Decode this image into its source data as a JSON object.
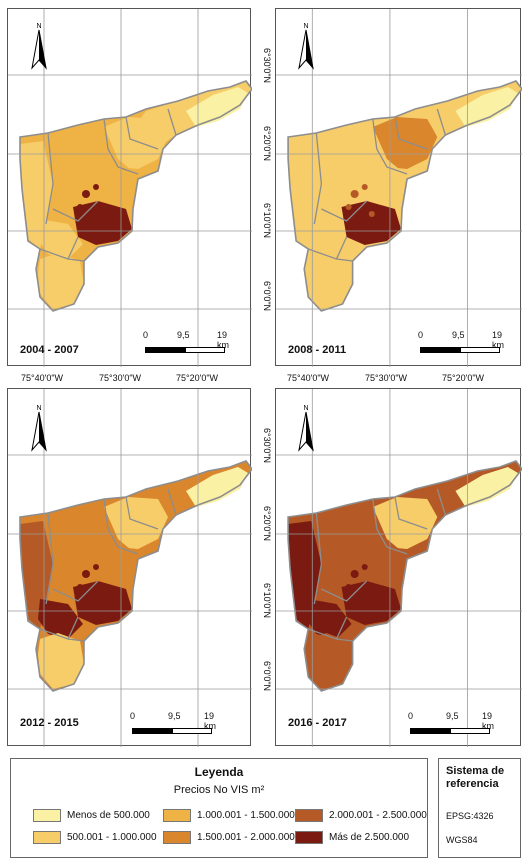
{
  "panels": [
    {
      "period": "2004 - 2007",
      "levels": {
        "north": 1,
        "northeast": 0,
        "east": 1,
        "center": 2,
        "west": 1,
        "southwest": 1,
        "south": 1,
        "core": 5,
        "hotspot": 5
      }
    },
    {
      "period": "2008 - 2011",
      "levels": {
        "north": 1,
        "northeast": 0,
        "east": 3,
        "center": 1,
        "west": 1,
        "southwest": 1,
        "south": 1,
        "core": 5,
        "hotspot": 4
      }
    },
    {
      "period": "2012 - 2015",
      "levels": {
        "north": 3,
        "northeast": 0,
        "east": 1,
        "center": 3,
        "west": 4,
        "southwest": 5,
        "south": 1,
        "core": 5,
        "hotspot": 5
      }
    },
    {
      "period": "2016 - 2017",
      "levels": {
        "north": 4,
        "northeast": 0,
        "east": 1,
        "center": 4,
        "west": 5,
        "southwest": 5,
        "south": 4,
        "core": 5,
        "hotspot": 5
      }
    }
  ],
  "longitude_labels": [
    "75°40'0\"W",
    "75°30'0\"W",
    "75°20'0\"W"
  ],
  "latitude_labels": [
    "6°30'0\"N",
    "6°20'0\"N",
    "6°10'0\"N",
    "6°0'0\"N"
  ],
  "scale": {
    "zero": "0",
    "mid": "9,5",
    "end": "19 km"
  },
  "north_label": "N",
  "legend": {
    "title": "Leyenda",
    "subtitle": "Precios No VIS m²",
    "classes": [
      {
        "label": "Menos de 500.000",
        "color": "#fbf1a4"
      },
      {
        "label": "500.001 - 1.000.000",
        "color": "#f7cd6a"
      },
      {
        "label": "1.000.001 - 1.500.000",
        "color": "#efb245"
      },
      {
        "label": "1.500.001 - 2.000.000",
        "color": "#d9862d"
      },
      {
        "label": "2.000.001 - 2.500.000",
        "color": "#b55a26"
      },
      {
        "label": "Más de 2.500.000",
        "color": "#7b1a10"
      }
    ]
  },
  "reference": {
    "title_line1": "Sistema de",
    "title_line2": "referencia",
    "epsg": "EPSG:4326",
    "datum": "WGS84"
  },
  "colors": {
    "boundary": "#8d8d8d",
    "grid": "#9a9a9a"
  }
}
